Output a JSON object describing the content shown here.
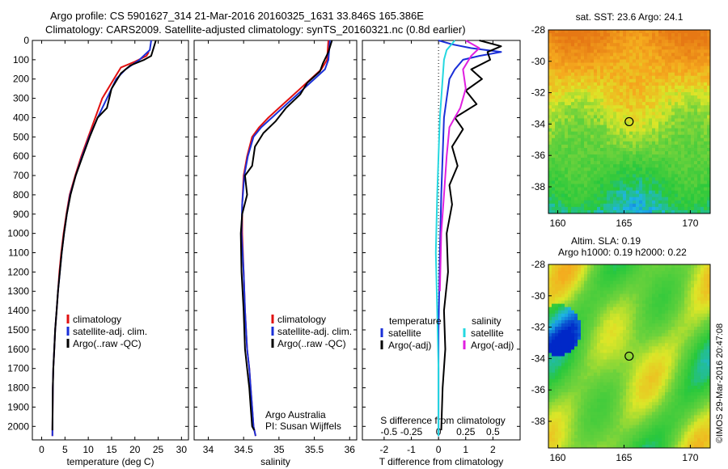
{
  "header": {
    "title_line1": "Argo profile: CS 5901627_314 21-Mar-2016 20160325_1631 33.846S 165.386E",
    "title_line2": "Climatology: CARS2009. Satellite-adjusted climatology: synTS_20160321.nc (0.8d earlier)"
  },
  "colors": {
    "climatology": "#e01010",
    "satellite": "#1a2fd8",
    "argo": "#000000",
    "sat_salinity": "#25d8e0",
    "argo_salinity": "#e020e0"
  },
  "depth_axis": {
    "ticks": [
      0,
      100,
      200,
      300,
      400,
      500,
      600,
      700,
      800,
      900,
      1000,
      1100,
      1200,
      1300,
      1400,
      1500,
      1600,
      1700,
      1800,
      1900,
      2000
    ],
    "range": [
      0,
      2070
    ]
  },
  "chart_data": [
    {
      "type": "line",
      "xlabel": "temperature (deg C)",
      "xticks": [
        0,
        5,
        10,
        15,
        20,
        25,
        30
      ],
      "xlim": [
        -2,
        31.5
      ],
      "legend": [
        "climatology",
        "satellite-adj. clim.",
        "Argo(..raw -QC)"
      ],
      "series": [
        {
          "name": "climatology",
          "color": "#e01010",
          "x": [
            23.0,
            22.5,
            20,
            17,
            15.5,
            13,
            11.5,
            10,
            8.5,
            7.2,
            6,
            5.3,
            4.7,
            4.2,
            3.8,
            3.5,
            3.2,
            2.9,
            2.7,
            2.5,
            2.4,
            2.3
          ],
          "y": [
            60,
            80,
            110,
            140,
            200,
            300,
            400,
            500,
            600,
            700,
            800,
            900,
            1000,
            1100,
            1200,
            1300,
            1400,
            1500,
            1600,
            1700,
            1800,
            2050
          ]
        },
        {
          "name": "satellite-adj. clim.",
          "color": "#1a2fd8",
          "x": [
            23.5,
            23.2,
            21,
            18,
            16,
            14,
            12,
            10.2,
            8.7,
            7.3,
            6.1,
            5.4,
            4.8,
            4.3,
            3.9,
            3.5,
            3.2,
            2.9,
            2.7,
            2.5,
            2.4,
            2.3
          ],
          "y": [
            0,
            50,
            100,
            150,
            200,
            300,
            400,
            500,
            600,
            700,
            800,
            900,
            1000,
            1100,
            1200,
            1300,
            1400,
            1500,
            1600,
            1700,
            1800,
            2050
          ]
        },
        {
          "name": "Argo(..raw -QC)",
          "color": "#000000",
          "x": [
            24.5,
            23.5,
            22,
            19,
            17,
            15,
            14,
            12,
            10.3,
            8.8,
            7.3,
            6.2,
            5.4,
            4.8,
            4.3,
            3.9,
            3.5,
            3.2,
            2.9,
            2.7,
            2.5,
            2.4,
            2.3
          ],
          "y": [
            0,
            80,
            100,
            130,
            170,
            250,
            350,
            400,
            500,
            600,
            700,
            800,
            900,
            1000,
            1100,
            1200,
            1300,
            1400,
            1500,
            1600,
            1700,
            1800,
            2020
          ]
        }
      ]
    },
    {
      "type": "line",
      "xlabel": "salinity",
      "xticks": [
        34,
        34.5,
        35,
        35.5,
        36
      ],
      "xlim": [
        33.8,
        36.1
      ],
      "legend": [
        "climatology",
        "satellite-adj. clim.",
        "Argo(..raw -QC)"
      ],
      "annotation": [
        "Argo Australia",
        "PI: Susan Wijffels"
      ],
      "series": [
        {
          "name": "climatology",
          "color": "#e01010",
          "x": [
            35.7,
            35.68,
            35.6,
            35.45,
            35.3,
            35.15,
            35.0,
            34.85,
            34.72,
            34.62,
            34.55,
            34.5,
            34.48,
            34.48,
            34.5,
            34.52,
            34.55,
            34.58,
            34.6,
            34.62,
            34.64,
            34.67
          ],
          "y": [
            0,
            100,
            150,
            200,
            250,
            300,
            350,
            400,
            450,
            500,
            600,
            700,
            850,
            1000,
            1200,
            1400,
            1600,
            1700,
            1800,
            1900,
            2000,
            2050
          ]
        },
        {
          "name": "satellite-adj. clim.",
          "color": "#1a2fd8",
          "x": [
            35.72,
            35.7,
            35.65,
            35.5,
            35.35,
            35.2,
            35.05,
            34.9,
            34.75,
            34.64,
            34.56,
            34.51,
            34.48,
            34.47,
            34.5,
            34.52,
            34.55,
            34.58,
            34.6,
            34.62,
            34.64,
            34.67
          ],
          "y": [
            0,
            100,
            150,
            200,
            250,
            300,
            350,
            400,
            450,
            500,
            600,
            700,
            850,
            1000,
            1200,
            1400,
            1600,
            1700,
            1800,
            1900,
            2000,
            2050
          ]
        },
        {
          "name": "Argo(..raw -QC)",
          "color": "#000000",
          "x": [
            35.75,
            35.7,
            35.62,
            35.58,
            35.4,
            35.3,
            35.1,
            34.95,
            34.78,
            34.66,
            34.62,
            34.52,
            34.55,
            34.48,
            34.46,
            34.47,
            34.5,
            34.52,
            34.55,
            34.58,
            34.6,
            34.62,
            34.65
          ],
          "y": [
            0,
            60,
            120,
            160,
            220,
            280,
            350,
            420,
            480,
            550,
            650,
            700,
            800,
            900,
            1000,
            1200,
            1400,
            1600,
            1700,
            1800,
            1900,
            2000,
            2020
          ]
        }
      ]
    },
    {
      "type": "line",
      "xlabel": "T difference from climatology",
      "top_label": "S difference from climatology",
      "xticks": [
        -2,
        -1,
        0,
        1,
        2
      ],
      "top_ticks": [
        -0.5,
        -0.25,
        0,
        0.25,
        0.5
      ],
      "xlim": [
        -2.8,
        3.0
      ],
      "legend_headers": [
        "temperature",
        "salinity"
      ],
      "legend": [
        "satellite",
        "Argo(-adj)",
        "satellite",
        "Argo(-adj)"
      ],
      "series": [
        {
          "name": "temperature satellite",
          "color": "#1a2fd8",
          "x": [
            0,
            0.5,
            1.2,
            2.3,
            1.5,
            0.9,
            0.6,
            0.4,
            0.3,
            0.2,
            0.15,
            0.1,
            0.05,
            0,
            0,
            0
          ],
          "y": [
            0,
            20,
            40,
            60,
            80,
            100,
            150,
            200,
            300,
            400,
            600,
            800,
            1100,
            1500,
            1800,
            2050
          ]
        },
        {
          "name": "temperature Argo(-adj)",
          "color": "#000000",
          "x": [
            1.5,
            2.3,
            1.8,
            1.9,
            1.2,
            1.6,
            1.0,
            1.4,
            0.6,
            0.9,
            0.5,
            0.7,
            0.4,
            0.5,
            0.3,
            0.35,
            0.2,
            0.25,
            0.15,
            0.1
          ],
          "y": [
            0,
            30,
            60,
            100,
            150,
            200,
            260,
            330,
            400,
            460,
            550,
            650,
            750,
            850,
            1000,
            1200,
            1400,
            1600,
            1800,
            2020
          ]
        },
        {
          "name": "salinity satellite",
          "color": "#25d8e0",
          "x": [
            0.6,
            0.3,
            0.2,
            0.15,
            0.1,
            0.05,
            0,
            -0.05,
            -0.1,
            -0.05,
            0,
            0
          ],
          "y": [
            0,
            50,
            100,
            200,
            300,
            400,
            600,
            800,
            1100,
            1400,
            1700,
            2050
          ]
        },
        {
          "name": "salinity Argo(-adj)",
          "color": "#e020e0",
          "x": [
            1.0,
            1.5,
            1.2,
            0.9,
            1.0,
            0.8,
            0.4,
            0.3,
            0.2,
            0.1,
            0.05
          ],
          "y": [
            0,
            40,
            80,
            150,
            250,
            350,
            450,
            600,
            800,
            1000,
            1300
          ]
        }
      ]
    },
    {
      "type": "heatmap",
      "title": "sat. SST: 23.6 Argo: 24.1",
      "xticks": [
        160,
        165,
        170
      ],
      "yticks": [
        -28,
        -30,
        -32,
        -34,
        -36,
        -38
      ],
      "xlim": [
        159.3,
        171.5
      ],
      "ylim": [
        -39.7,
        -28
      ],
      "marker": {
        "lon": 165.386,
        "lat": -33.846
      }
    },
    {
      "type": "heatmap",
      "title_line1": "Altim. SLA: 0.19",
      "title_line2": "Argo h1000: 0.19 h2000: 0.22",
      "xticks": [
        160,
        165,
        170
      ],
      "yticks": [
        -28,
        -30,
        -32,
        -34,
        -36,
        -38
      ],
      "xlim": [
        159.3,
        171.5
      ],
      "ylim": [
        -39.7,
        -28
      ],
      "marker": {
        "lon": 165.386,
        "lat": -33.846
      }
    }
  ],
  "credit": "©IMOS 29-Mar-2016 20:47:08"
}
